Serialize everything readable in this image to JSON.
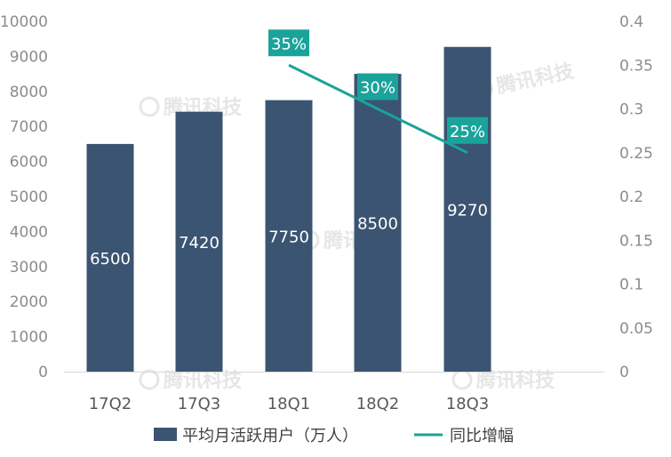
{
  "chart_data": {
    "type": "bar",
    "categories": [
      "17Q2",
      "17Q3",
      "18Q1",
      "18Q2",
      "18Q3"
    ],
    "series": [
      {
        "name": "平均月活跃用户（万人）",
        "type": "bar",
        "axis": "left",
        "values": [
          6500,
          7420,
          7750,
          8500,
          9270
        ],
        "data_labels": [
          "6500",
          "7420",
          "7750",
          "8500",
          "9270"
        ],
        "color": "#3b5471"
      },
      {
        "name": "同比增幅",
        "type": "line",
        "axis": "right",
        "x": [
          "18Q1",
          "18Q2",
          "18Q3"
        ],
        "values": [
          0.35,
          0.3,
          0.25
        ],
        "data_labels": [
          "35%",
          "30%",
          "25%"
        ],
        "color": "#1aa39a"
      }
    ],
    "y_left": {
      "lim": [
        0,
        10000
      ],
      "ticks": [
        "0",
        "1000",
        "2000",
        "3000",
        "4000",
        "5000",
        "6000",
        "7000",
        "8000",
        "9000",
        "10000"
      ]
    },
    "y_right": {
      "lim": [
        0,
        0.4
      ],
      "ticks": [
        "0",
        "0.05",
        "0.1",
        "0.15",
        "0.2",
        "0.25",
        "0.3",
        "0.35",
        "0.4"
      ]
    },
    "grid": false,
    "legend_position": "bottom",
    "watermark": "腾讯科技"
  }
}
